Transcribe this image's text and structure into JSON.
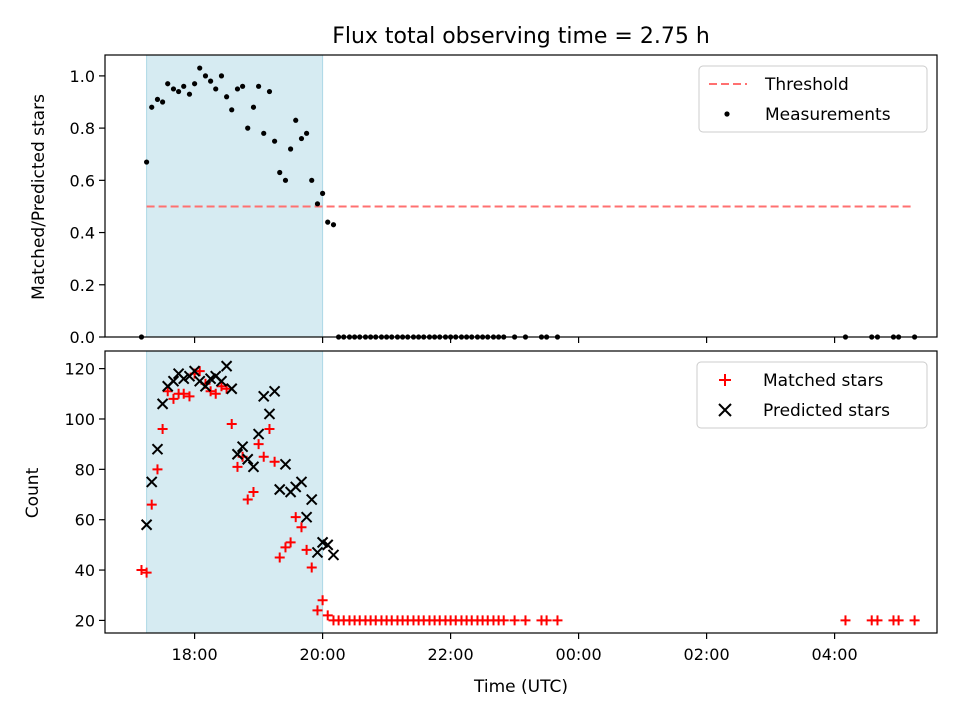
{
  "title": "Flux total observing time = 2.75 h",
  "x_axis": {
    "label": "Time (UTC)",
    "ticks": [
      "18:00",
      "20:00",
      "22:00",
      "00:00",
      "02:00",
      "04:00"
    ]
  },
  "colors": {
    "threshold": "#ff7070",
    "matched": "#ff0000",
    "predicted": "#000000",
    "shade": "#add8e6"
  },
  "chart_data": [
    {
      "type": "scatter",
      "title": "Flux total observing time = 2.75 h",
      "ylabel": "Matched/Predicted stars",
      "ylim": [
        0,
        1.08
      ],
      "yticks": [
        "0.0",
        "0.2",
        "0.4",
        "0.6",
        "0.8",
        "1.0"
      ],
      "ytick_values": [
        0,
        0.2,
        0.4,
        0.6,
        0.8,
        1.0
      ],
      "xlim_hours": [
        16.6,
        29.6
      ],
      "xticks_hours": [
        18,
        20,
        22,
        24,
        26,
        28
      ],
      "shaded_span_hours": [
        17.25,
        20.0
      ],
      "legend": "top-right",
      "grid": false,
      "series": [
        {
          "name": "Threshold",
          "kind": "dashed-line",
          "x": [
            17.25,
            29.25
          ],
          "y": [
            0.5,
            0.5
          ]
        },
        {
          "name": "Measurements",
          "kind": "dots",
          "x": [
            17.17,
            17.25,
            17.33,
            17.42,
            17.5,
            17.58,
            17.67,
            17.75,
            17.83,
            17.92,
            18.0,
            18.08,
            18.17,
            18.25,
            18.33,
            18.42,
            18.5,
            18.58,
            18.67,
            18.75,
            18.83,
            18.92,
            19.0,
            19.08,
            19.17,
            19.25,
            19.33,
            19.42,
            19.5,
            19.58,
            19.67,
            19.75,
            19.83,
            19.92,
            20.0,
            20.08,
            20.17,
            20.25,
            20.33,
            20.42,
            20.5,
            20.58,
            20.67,
            20.75,
            20.83,
            20.92,
            21.0,
            21.08,
            21.17,
            21.25,
            21.33,
            21.42,
            21.5,
            21.58,
            21.67,
            21.75,
            21.83,
            21.92,
            22.0,
            22.08,
            22.17,
            22.25,
            22.33,
            22.42,
            22.5,
            22.58,
            22.67,
            22.75,
            22.83,
            23.0,
            23.17,
            23.42,
            23.5,
            23.67,
            28.17,
            28.58,
            28.67,
            28.92,
            29.0,
            29.25
          ],
          "y": [
            0.0,
            0.67,
            0.88,
            0.91,
            0.9,
            0.97,
            0.95,
            0.94,
            0.96,
            0.93,
            0.97,
            1.03,
            1.0,
            0.98,
            0.95,
            1.0,
            0.92,
            0.87,
            0.95,
            0.96,
            0.8,
            0.88,
            0.96,
            0.78,
            0.94,
            0.75,
            0.63,
            0.6,
            0.72,
            0.83,
            0.76,
            0.78,
            0.6,
            0.51,
            0.55,
            0.44,
            0.43,
            0,
            0,
            0,
            0,
            0,
            0,
            0,
            0,
            0,
            0,
            0,
            0,
            0,
            0,
            0,
            0,
            0,
            0,
            0,
            0,
            0,
            0,
            0,
            0,
            0,
            0,
            0,
            0,
            0,
            0,
            0,
            0,
            0,
            0,
            0,
            0,
            0,
            0,
            0,
            0,
            0,
            0,
            0
          ]
        }
      ]
    },
    {
      "type": "scatter",
      "xlabel": "Time (UTC)",
      "ylabel": "Count",
      "ylim": [
        15,
        127
      ],
      "yticks": [
        "20",
        "40",
        "60",
        "80",
        "100",
        "120"
      ],
      "ytick_values": [
        20,
        40,
        60,
        80,
        100,
        120
      ],
      "xlim_hours": [
        16.6,
        29.6
      ],
      "xticks_hours": [
        18,
        20,
        22,
        24,
        26,
        28
      ],
      "shaded_span_hours": [
        17.25,
        20.0
      ],
      "legend": "top-right",
      "grid": false,
      "series": [
        {
          "name": "Matched stars",
          "marker": "plus",
          "x": [
            17.17,
            17.25,
            17.33,
            17.42,
            17.5,
            17.58,
            17.67,
            17.75,
            17.83,
            17.92,
            18.0,
            18.08,
            18.17,
            18.25,
            18.33,
            18.42,
            18.5,
            18.58,
            18.67,
            18.75,
            18.83,
            18.92,
            19.0,
            19.08,
            19.17,
            19.25,
            19.33,
            19.42,
            19.5,
            19.58,
            19.67,
            19.75,
            19.83,
            19.92,
            20.0,
            20.08,
            20.17,
            20.25,
            20.33,
            20.42,
            20.5,
            20.58,
            20.67,
            20.75,
            20.83,
            20.92,
            21.0,
            21.08,
            21.17,
            21.25,
            21.33,
            21.42,
            21.5,
            21.58,
            21.67,
            21.75,
            21.83,
            21.92,
            22.0,
            22.08,
            22.17,
            22.25,
            22.33,
            22.42,
            22.5,
            22.58,
            22.67,
            22.75,
            22.83,
            23.0,
            23.17,
            23.42,
            23.5,
            23.67,
            28.17,
            28.58,
            28.67,
            28.92,
            29.0,
            29.25
          ],
          "y": [
            40,
            39,
            66,
            80,
            96,
            111,
            108,
            110,
            110,
            109,
            118,
            119,
            114,
            111,
            110,
            113,
            112,
            98,
            81,
            85,
            68,
            71,
            90,
            85,
            96,
            83,
            45,
            49,
            51,
            61,
            57,
            48,
            41,
            24,
            28,
            22,
            20,
            20,
            20,
            20,
            20,
            20,
            20,
            20,
            20,
            20,
            20,
            20,
            20,
            20,
            20,
            20,
            20,
            20,
            20,
            20,
            20,
            20,
            20,
            20,
            20,
            20,
            20,
            20,
            20,
            20,
            20,
            20,
            20,
            20,
            20,
            20,
            20,
            20,
            20,
            20,
            20,
            20,
            20,
            20
          ]
        },
        {
          "name": "Predicted stars",
          "marker": "x",
          "x": [
            17.25,
            17.33,
            17.42,
            17.5,
            17.58,
            17.67,
            17.75,
            17.83,
            17.92,
            18.0,
            18.08,
            18.17,
            18.25,
            18.33,
            18.42,
            18.5,
            18.58,
            18.67,
            18.75,
            18.83,
            18.92,
            19.0,
            19.08,
            19.17,
            19.25,
            19.33,
            19.42,
            19.5,
            19.58,
            19.67,
            19.75,
            19.83,
            19.92,
            20.0,
            20.08,
            20.17
          ],
          "y": [
            58,
            75,
            88,
            106,
            113,
            115,
            118,
            116,
            117,
            119,
            115,
            113,
            116,
            117,
            115,
            121,
            112,
            86,
            89,
            84,
            81,
            94,
            109,
            102,
            111,
            72,
            82,
            71,
            73,
            75,
            61,
            68,
            47,
            51,
            50,
            46
          ]
        }
      ]
    }
  ]
}
